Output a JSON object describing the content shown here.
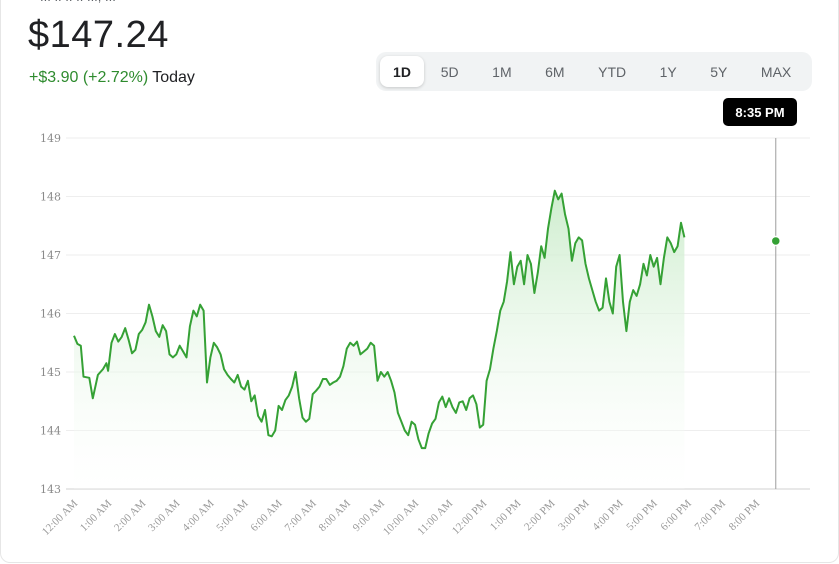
{
  "header": {
    "price": "$147.24",
    "change": "+$3.90 (+2.72%)",
    "period_label": "Today",
    "top_cut_text": "...  ..  ..  .. ..., ..."
  },
  "range_tabs": [
    {
      "label": "1D",
      "active": true
    },
    {
      "label": "5D",
      "active": false
    },
    {
      "label": "1M",
      "active": false
    },
    {
      "label": "6M",
      "active": false
    },
    {
      "label": "YTD",
      "active": false
    },
    {
      "label": "1Y",
      "active": false
    },
    {
      "label": "5Y",
      "active": false
    },
    {
      "label": "MAX",
      "active": false
    }
  ],
  "tooltip": {
    "time": "8:35 PM"
  },
  "colors": {
    "line": "#35a135",
    "area_top": "#c8ebc8",
    "accent_text": "#2e8b2e"
  },
  "chart_data": {
    "type": "area",
    "xlabel": "",
    "ylabel": "",
    "y_ticks": [
      143,
      144,
      145,
      146,
      147,
      148,
      149
    ],
    "ylim": [
      143,
      149
    ],
    "xlim": [
      0,
      20.75
    ],
    "x_ticks": [
      {
        "hour": 0,
        "label": "12:00 AM"
      },
      {
        "hour": 1,
        "label": "1:00 AM"
      },
      {
        "hour": 2,
        "label": "2:00 AM"
      },
      {
        "hour": 3,
        "label": "3:00 AM"
      },
      {
        "hour": 4,
        "label": "4:00 AM"
      },
      {
        "hour": 5,
        "label": "5:00 AM"
      },
      {
        "hour": 6,
        "label": "6:00 AM"
      },
      {
        "hour": 7,
        "label": "7:00 AM"
      },
      {
        "hour": 8,
        "label": "8:00 AM"
      },
      {
        "hour": 9,
        "label": "9:00 AM"
      },
      {
        "hour": 10,
        "label": "10:00 AM"
      },
      {
        "hour": 11,
        "label": "11:00 AM"
      },
      {
        "hour": 12,
        "label": "12:00 PM"
      },
      {
        "hour": 13,
        "label": "1:00 PM"
      },
      {
        "hour": 14,
        "label": "2:00 PM"
      },
      {
        "hour": 15,
        "label": "3:00 PM"
      },
      {
        "hour": 16,
        "label": "4:00 PM"
      },
      {
        "hour": 17,
        "label": "5:00 PM"
      },
      {
        "hour": 18,
        "label": "6:00 PM"
      },
      {
        "hour": 19,
        "label": "7:00 PM"
      },
      {
        "hour": 20,
        "label": "8:00 PM"
      }
    ],
    "hover": {
      "hour": 20.58,
      "value": 147.24
    },
    "series": [
      {
        "points": [
          [
            0.0,
            145.62
          ],
          [
            0.1,
            145.48
          ],
          [
            0.2,
            145.45
          ],
          [
            0.28,
            144.92
          ],
          [
            0.45,
            144.9
          ],
          [
            0.55,
            144.55
          ],
          [
            0.7,
            144.95
          ],
          [
            0.85,
            145.05
          ],
          [
            0.95,
            145.15
          ],
          [
            1.0,
            145.02
          ],
          [
            1.1,
            145.5
          ],
          [
            1.2,
            145.65
          ],
          [
            1.3,
            145.52
          ],
          [
            1.4,
            145.6
          ],
          [
            1.5,
            145.75
          ],
          [
            1.6,
            145.55
          ],
          [
            1.7,
            145.32
          ],
          [
            1.8,
            145.38
          ],
          [
            1.9,
            145.65
          ],
          [
            2.0,
            145.72
          ],
          [
            2.1,
            145.85
          ],
          [
            2.2,
            146.15
          ],
          [
            2.3,
            145.95
          ],
          [
            2.4,
            145.7
          ],
          [
            2.5,
            145.6
          ],
          [
            2.6,
            145.8
          ],
          [
            2.7,
            145.7
          ],
          [
            2.8,
            145.3
          ],
          [
            2.9,
            145.25
          ],
          [
            3.0,
            145.3
          ],
          [
            3.1,
            145.45
          ],
          [
            3.2,
            145.35
          ],
          [
            3.3,
            145.25
          ],
          [
            3.4,
            145.78
          ],
          [
            3.5,
            146.05
          ],
          [
            3.6,
            145.95
          ],
          [
            3.7,
            146.15
          ],
          [
            3.8,
            146.05
          ],
          [
            3.9,
            144.82
          ],
          [
            4.0,
            145.25
          ],
          [
            4.1,
            145.5
          ],
          [
            4.2,
            145.42
          ],
          [
            4.3,
            145.3
          ],
          [
            4.4,
            145.05
          ],
          [
            4.5,
            144.95
          ],
          [
            4.6,
            144.88
          ],
          [
            4.7,
            144.82
          ],
          [
            4.8,
            144.95
          ],
          [
            4.9,
            144.75
          ],
          [
            5.0,
            144.7
          ],
          [
            5.1,
            144.85
          ],
          [
            5.2,
            144.5
          ],
          [
            5.3,
            144.6
          ],
          [
            5.4,
            144.25
          ],
          [
            5.5,
            144.15
          ],
          [
            5.6,
            144.35
          ],
          [
            5.7,
            143.92
          ],
          [
            5.8,
            143.9
          ],
          [
            5.9,
            144.0
          ],
          [
            6.0,
            144.42
          ],
          [
            6.1,
            144.35
          ],
          [
            6.2,
            144.52
          ],
          [
            6.3,
            144.6
          ],
          [
            6.4,
            144.75
          ],
          [
            6.5,
            145.0
          ],
          [
            6.6,
            144.55
          ],
          [
            6.7,
            144.22
          ],
          [
            6.8,
            144.15
          ],
          [
            6.9,
            144.2
          ],
          [
            7.0,
            144.62
          ],
          [
            7.1,
            144.68
          ],
          [
            7.2,
            144.75
          ],
          [
            7.3,
            144.88
          ],
          [
            7.4,
            144.88
          ],
          [
            7.5,
            144.78
          ],
          [
            7.6,
            144.82
          ],
          [
            7.7,
            144.85
          ],
          [
            7.8,
            144.92
          ],
          [
            7.9,
            145.1
          ],
          [
            8.0,
            145.4
          ],
          [
            8.1,
            145.5
          ],
          [
            8.2,
            145.45
          ],
          [
            8.3,
            145.52
          ],
          [
            8.4,
            145.3
          ],
          [
            8.5,
            145.35
          ],
          [
            8.6,
            145.4
          ],
          [
            8.7,
            145.5
          ],
          [
            8.8,
            145.45
          ],
          [
            8.9,
            144.85
          ],
          [
            9.0,
            145.0
          ],
          [
            9.1,
            144.92
          ],
          [
            9.2,
            145.0
          ],
          [
            9.3,
            144.85
          ],
          [
            9.4,
            144.65
          ],
          [
            9.5,
            144.3
          ],
          [
            9.6,
            144.15
          ],
          [
            9.7,
            144.0
          ],
          [
            9.8,
            143.92
          ],
          [
            9.9,
            144.15
          ],
          [
            10.0,
            144.1
          ],
          [
            10.1,
            143.85
          ],
          [
            10.2,
            143.7
          ],
          [
            10.3,
            143.7
          ],
          [
            10.4,
            143.95
          ],
          [
            10.5,
            144.12
          ],
          [
            10.6,
            144.2
          ],
          [
            10.7,
            144.48
          ],
          [
            10.8,
            144.58
          ],
          [
            10.9,
            144.4
          ],
          [
            11.0,
            144.55
          ],
          [
            11.1,
            144.4
          ],
          [
            11.2,
            144.3
          ],
          [
            11.3,
            144.48
          ],
          [
            11.4,
            144.5
          ],
          [
            11.5,
            144.35
          ],
          [
            11.6,
            144.55
          ],
          [
            11.7,
            144.6
          ],
          [
            11.8,
            144.45
          ],
          [
            11.9,
            144.05
          ],
          [
            12.0,
            144.1
          ],
          [
            12.1,
            144.85
          ],
          [
            12.2,
            145.05
          ],
          [
            12.3,
            145.4
          ],
          [
            12.4,
            145.7
          ],
          [
            12.5,
            146.05
          ],
          [
            12.6,
            146.2
          ],
          [
            12.7,
            146.55
          ],
          [
            12.8,
            147.05
          ],
          [
            12.9,
            146.5
          ],
          [
            13.0,
            146.8
          ],
          [
            13.1,
            146.9
          ],
          [
            13.2,
            146.5
          ],
          [
            13.3,
            147.0
          ],
          [
            13.4,
            146.85
          ],
          [
            13.5,
            146.35
          ],
          [
            13.6,
            146.7
          ],
          [
            13.7,
            147.15
          ],
          [
            13.8,
            146.95
          ],
          [
            13.9,
            147.45
          ],
          [
            14.0,
            147.8
          ],
          [
            14.1,
            148.1
          ],
          [
            14.2,
            147.95
          ],
          [
            14.3,
            148.05
          ],
          [
            14.4,
            147.7
          ],
          [
            14.5,
            147.45
          ],
          [
            14.6,
            146.9
          ],
          [
            14.7,
            147.2
          ],
          [
            14.8,
            147.3
          ],
          [
            14.9,
            147.25
          ],
          [
            15.0,
            146.85
          ],
          [
            15.1,
            146.6
          ],
          [
            15.2,
            146.4
          ],
          [
            15.3,
            146.2
          ],
          [
            15.4,
            146.05
          ],
          [
            15.5,
            146.1
          ],
          [
            15.6,
            146.6
          ],
          [
            15.7,
            146.2
          ],
          [
            15.8,
            146.0
          ],
          [
            15.9,
            146.8
          ],
          [
            16.0,
            147.0
          ],
          [
            16.1,
            146.2
          ],
          [
            16.2,
            145.7
          ],
          [
            16.3,
            146.2
          ],
          [
            16.4,
            146.4
          ],
          [
            16.5,
            146.3
          ],
          [
            16.6,
            146.5
          ],
          [
            16.7,
            146.85
          ],
          [
            16.8,
            146.65
          ],
          [
            16.9,
            147.0
          ],
          [
            17.0,
            146.8
          ],
          [
            17.1,
            146.95
          ],
          [
            17.2,
            146.5
          ],
          [
            17.3,
            146.95
          ],
          [
            17.4,
            147.3
          ],
          [
            17.5,
            147.2
          ],
          [
            17.6,
            147.05
          ],
          [
            17.7,
            147.15
          ],
          [
            17.8,
            147.55
          ],
          [
            17.9,
            147.3
          ]
        ]
      }
    ]
  }
}
